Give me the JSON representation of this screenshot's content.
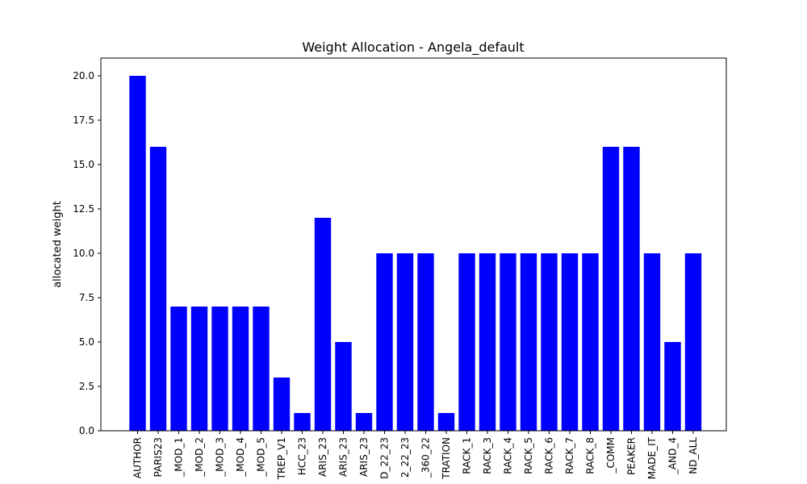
{
  "chart_data": {
    "type": "bar",
    "title": "Weight Allocation - Angela_default",
    "xlabel": "",
    "ylabel": "allocated weight",
    "categories": [
      "AUTHOR",
      "PARIS23",
      "_MOD_1",
      "_MOD_2",
      "_MOD_3",
      "_MOD_4",
      "_MOD_5",
      "TREP_V1",
      "HCC_23",
      "ARIS_23",
      "ARIS_23",
      "ARIS_23",
      "D_22_23",
      "2_22_23",
      "_360_22",
      "TRATION",
      "RACK_1",
      "RACK_3",
      "RACK_4",
      "RACK_5",
      "RACK_6",
      "RACK_7",
      "RACK_8",
      "_COMM",
      "PEAKER",
      "MADE_IT",
      "_AND_4",
      "ND_ALL"
    ],
    "values": [
      20,
      16,
      7,
      7,
      7,
      7,
      7,
      3,
      1,
      12,
      5,
      1,
      10,
      10,
      10,
      1,
      10,
      10,
      10,
      10,
      10,
      10,
      10,
      16,
      16,
      10,
      5,
      10
    ],
    "ylim": [
      0,
      21
    ],
    "yticks": [
      "0.0",
      "2.5",
      "5.0",
      "7.5",
      "10.0",
      "12.5",
      "15.0",
      "17.5",
      "20.0"
    ],
    "bar_color": "#0000ff",
    "grid": false
  }
}
